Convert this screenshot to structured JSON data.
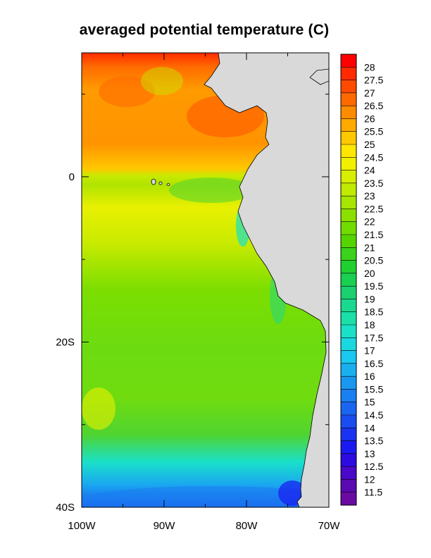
{
  "title": "averaged potential temperature (C)",
  "map": {
    "lon_range": [
      -100,
      -70
    ],
    "lat_range": [
      -40,
      15
    ],
    "land_color": "#d9d9d9",
    "ocean_background": "#ffffff"
  },
  "axes": {
    "x_ticks": [
      {
        "value": -100,
        "label": "100W"
      },
      {
        "value": -90,
        "label": "90W"
      },
      {
        "value": -80,
        "label": "80W"
      },
      {
        "value": -70,
        "label": "70W"
      }
    ],
    "y_ticks": [
      {
        "value": 0,
        "label": "0"
      },
      {
        "value": -20,
        "label": "20S"
      },
      {
        "value": -40,
        "label": "40S"
      }
    ]
  },
  "colorbar": {
    "labels": [
      "28",
      "27.5",
      "27",
      "26.5",
      "26",
      "25.5",
      "25",
      "24.5",
      "24",
      "23.5",
      "23",
      "22.5",
      "22",
      "21.5",
      "21",
      "20.5",
      "20",
      "19.5",
      "19",
      "18.5",
      "18",
      "17.5",
      "17",
      "16.5",
      "16",
      "15.5",
      "15",
      "14.5",
      "14",
      "13.5",
      "13",
      "12.5",
      "12",
      "11.5"
    ],
    "colors": [
      "#ff0000",
      "#ff2a00",
      "#ff4a00",
      "#ff6a00",
      "#ff8c00",
      "#ffaa00",
      "#ffc800",
      "#ffe600",
      "#f0f000",
      "#d8ee00",
      "#c0ea00",
      "#a6e600",
      "#8ce000",
      "#72dc00",
      "#55d400",
      "#3ad21a",
      "#20d030",
      "#1ad050",
      "#1ad070",
      "#1ad890",
      "#1ae0a8",
      "#1ae0c8",
      "#1ad8e0",
      "#1ac8f0",
      "#1ab0f0",
      "#1a98f0",
      "#1a7ff0",
      "#1a66f0",
      "#1a4cf0",
      "#1a33f0",
      "#1a1af0",
      "#2c0ae0",
      "#4a08c8",
      "#5a0ab0",
      "#6a0aa0"
    ]
  }
}
